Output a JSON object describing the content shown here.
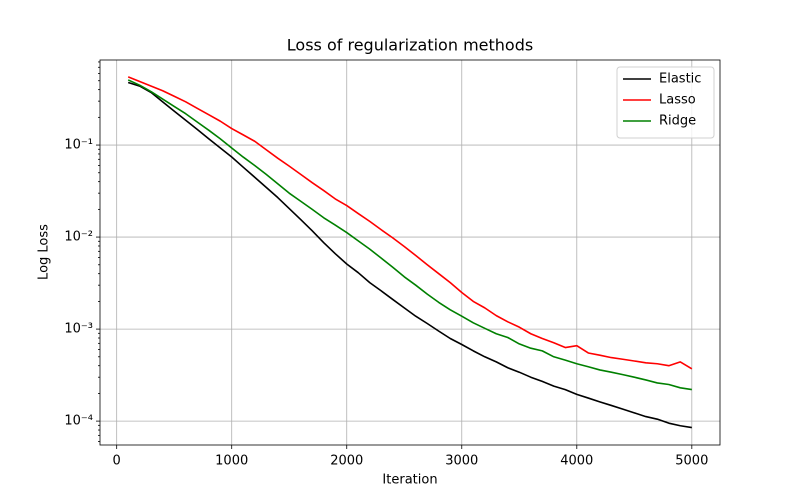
{
  "chart_data": {
    "type": "line",
    "title": "Loss of regularization methods",
    "xlabel": "Iteration",
    "ylabel": "Log Loss",
    "yscale": "log",
    "grid": true,
    "legend": "upper right",
    "x": [
      100,
      200,
      300,
      400,
      500,
      600,
      700,
      800,
      900,
      1000,
      1100,
      1200,
      1300,
      1400,
      1500,
      1600,
      1700,
      1800,
      1900,
      2000,
      2100,
      2200,
      2300,
      2400,
      2500,
      2600,
      2700,
      2800,
      2900,
      3000,
      3100,
      3200,
      3300,
      3400,
      3500,
      3600,
      3700,
      3800,
      3900,
      4000,
      4100,
      4200,
      4300,
      4400,
      4500,
      4600,
      4700,
      4800,
      4900,
      5000
    ],
    "series": [
      {
        "name": "Elastic",
        "color": "#000000",
        "values": [
          0.479,
          0.437,
          0.372,
          0.295,
          0.234,
          0.186,
          0.148,
          0.117,
          0.0933,
          0.0741,
          0.0575,
          0.0447,
          0.0347,
          0.0269,
          0.0204,
          0.0155,
          0.0117,
          0.0087,
          0.0066,
          0.0051,
          0.0041,
          0.0032,
          0.0026,
          0.0021,
          0.0017,
          0.00138,
          0.00115,
          0.00095,
          0.00079,
          0.00068,
          0.00058,
          0.0005,
          0.00044,
          0.00038,
          0.00034,
          0.0003,
          0.00027,
          0.00024,
          0.00022,
          0.000195,
          0.000178,
          0.000162,
          0.000148,
          0.000135,
          0.000123,
          0.000112,
          0.000105,
          9.5e-05,
          8.9e-05,
          8.5e-05
        ]
      },
      {
        "name": "Lasso",
        "color": "#ff0000",
        "values": [
          0.55,
          0.49,
          0.437,
          0.389,
          0.339,
          0.295,
          0.251,
          0.214,
          0.182,
          0.151,
          0.129,
          0.11,
          0.089,
          0.072,
          0.059,
          0.048,
          0.039,
          0.032,
          0.026,
          0.022,
          0.018,
          0.0148,
          0.012,
          0.0098,
          0.0079,
          0.0063,
          0.005,
          0.004,
          0.0032,
          0.0025,
          0.002,
          0.0017,
          0.0014,
          0.0012,
          0.00105,
          0.00089,
          0.00079,
          0.00071,
          0.00063,
          0.00066,
          0.00055,
          0.00052,
          0.00049,
          0.00047,
          0.00045,
          0.00043,
          0.00042,
          0.0004,
          0.00044,
          0.00037
        ]
      },
      {
        "name": "Ridge",
        "color": "#008000",
        "values": [
          0.51,
          0.447,
          0.38,
          0.316,
          0.263,
          0.219,
          0.178,
          0.145,
          0.117,
          0.093,
          0.074,
          0.06,
          0.048,
          0.038,
          0.03,
          0.0245,
          0.02,
          0.0162,
          0.0135,
          0.0112,
          0.0091,
          0.0074,
          0.0059,
          0.0047,
          0.0037,
          0.003,
          0.0024,
          0.00195,
          0.00162,
          0.00138,
          0.00117,
          0.00102,
          0.00089,
          0.00081,
          0.00069,
          0.00062,
          0.00058,
          0.0005,
          0.00046,
          0.00042,
          0.00039,
          0.00036,
          0.00034,
          0.00032,
          0.0003,
          0.00028,
          0.00026,
          0.00025,
          0.00023,
          0.00022
        ]
      }
    ],
    "xlim": [
      -145,
      5245
    ],
    "xticks": [
      0,
      1000,
      2000,
      3000,
      4000,
      5000
    ],
    "ylim": [
      5.5e-05,
      0.84
    ],
    "yticks": [
      {
        "value": 0.1,
        "label": "10⁻¹"
      },
      {
        "value": 0.01,
        "label": "10⁻²"
      },
      {
        "value": 0.001,
        "label": "10⁻³"
      },
      {
        "value": 0.0001,
        "label": "10⁻⁴"
      }
    ]
  }
}
